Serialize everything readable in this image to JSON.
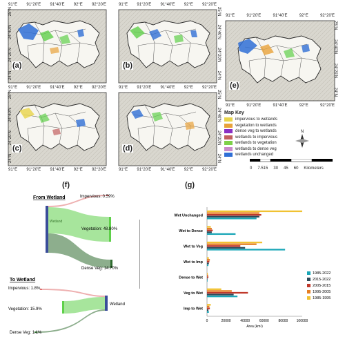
{
  "maps": {
    "lon_ticks": [
      "91°E",
      "91°20'E",
      "91°40'E",
      "92°E",
      "92°20'E"
    ],
    "lat_ticks": [
      "25°N",
      "24°40'N",
      "24°20'N",
      "24°N"
    ],
    "panels": [
      {
        "label": "(a)"
      },
      {
        "label": "(b)"
      },
      {
        "label": "(c)"
      },
      {
        "label": "(d)"
      },
      {
        "label": "(e)"
      }
    ]
  },
  "map_key": {
    "title": "Map Key",
    "items": [
      {
        "label": "impervious to wetlands",
        "color": "#e8d44a"
      },
      {
        "label": "vegetation to wetlands",
        "color": "#e8a23a"
      },
      {
        "label": "dense veg to wetlands",
        "color": "#8a2fc4"
      },
      {
        "label": "wetlands to impervious",
        "color": "#c26060"
      },
      {
        "label": "wetlands to vegetation",
        "color": "#7ed14a"
      },
      {
        "label": "wetlands to dense veg",
        "color": "#c989c9"
      },
      {
        "label": "wetlands unchanged",
        "color": "#2f6fd6"
      }
    ],
    "scale_ticks": [
      "0",
      "7.515",
      "30",
      "45",
      "60"
    ],
    "scale_unit": "Kilometers",
    "north": "N"
  },
  "sankey": {
    "panel_label": "(f)",
    "from_title": "From Wetland",
    "to_title": "To Wetland",
    "from_node": "Wetland",
    "to_node": "Wetland",
    "from_flows": [
      {
        "label": "Impervious: 0.59%",
        "value": 0.59,
        "color": "#e07070"
      },
      {
        "label": "Vegetation: 48.80%",
        "value": 48.8,
        "color": "#5fd04a"
      },
      {
        "label": "Dense Veg: 14.70%",
        "value": 14.7,
        "color": "#2f6b2f"
      }
    ],
    "to_flows": [
      {
        "label": "Impervious: 1.8%",
        "value": 1.8,
        "color": "#e07070"
      },
      {
        "label": "Vegetation: 15.9%",
        "value": 15.9,
        "color": "#5fd04a"
      },
      {
        "label": "Dense Veg: 1.1%",
        "value": 1.1,
        "color": "#2f6b2f"
      }
    ]
  },
  "chart_data": {
    "type": "bar",
    "orientation": "horizontal",
    "panel_label": "(g)",
    "categories": [
      "Wet Unchanged",
      "Wet to Dense",
      "Wet to Veg",
      "Wet to Imp",
      "Dense to Wet",
      "Veg to Wet",
      "Imp to Wet"
    ],
    "series": [
      {
        "name": "1985-2022",
        "color": "#1aa6b7",
        "values": [
          52000,
          30000,
          82000,
          1500,
          600,
          32000,
          2000
        ]
      },
      {
        "name": "2015-2022",
        "color": "#2e4a5a",
        "values": [
          55000,
          5000,
          40000,
          2000,
          500,
          28000,
          1500
        ]
      },
      {
        "name": "2005-2015",
        "color": "#c0392b",
        "values": [
          57000,
          6000,
          35000,
          2500,
          1500,
          43000,
          3000
        ]
      },
      {
        "name": "1995-2005",
        "color": "#e67e22",
        "values": [
          55000,
          5000,
          52000,
          3000,
          1200,
          26000,
          2500
        ]
      },
      {
        "name": "1985-1995",
        "color": "#f1c232",
        "values": [
          100000,
          4000,
          58000,
          2000,
          800,
          15000,
          4000
        ]
      }
    ],
    "xlabel": "Area (km²)",
    "xticks": [
      "0",
      "20000",
      "40000",
      "60000",
      "80000",
      "100000"
    ],
    "xlim": [
      0,
      100000
    ],
    "legend_position": "right"
  }
}
